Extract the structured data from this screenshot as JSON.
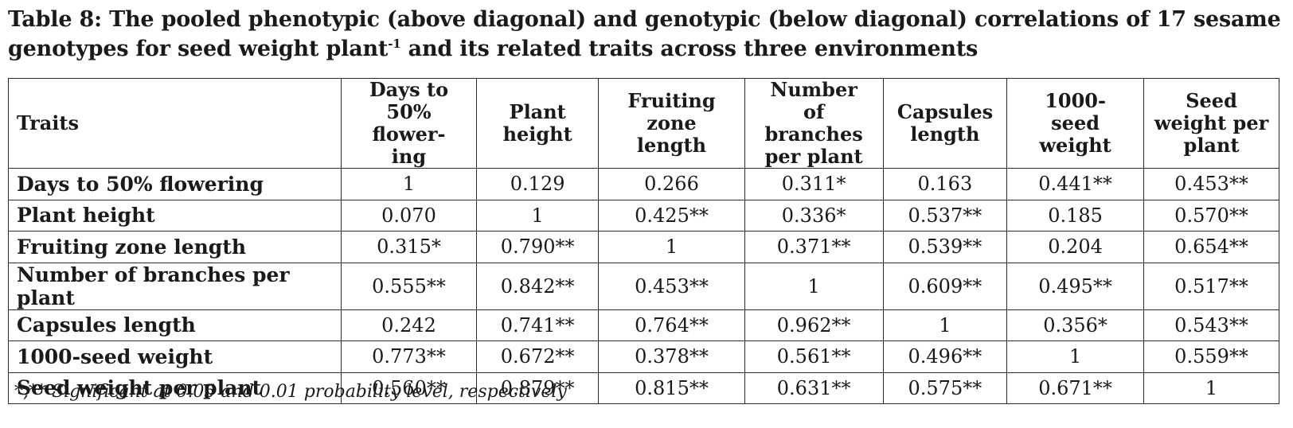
{
  "caption": {
    "text_before": "Table 8: The pooled phenotypic (above diagonal) and genotypic (below diagonal) correlations of 17 sesame genotypes for seed weight plant",
    "superscript": "-1",
    "text_after": " and its related traits across three environments"
  },
  "table": {
    "columns": [
      "Traits",
      "Days to 50% flower-ing",
      "Plant height",
      "Fruiting zone length",
      "Number of branches per plant",
      "Capsules length",
      "1000-seed weight",
      "Seed weight per plant"
    ],
    "rows": [
      {
        "trait": "Days to 50% flowering",
        "values": [
          "1",
          "0.129",
          "0.266",
          "0.311*",
          "0.163",
          "0.441**",
          "0.453**"
        ]
      },
      {
        "trait": "Plant height",
        "values": [
          "0.070",
          "1",
          "0.425**",
          "0.336*",
          "0.537**",
          "0.185",
          "0.570**"
        ]
      },
      {
        "trait": "Fruiting zone length",
        "values": [
          "0.315*",
          "0.790**",
          "1",
          "0.371**",
          "0.539**",
          "0.204",
          "0.654**"
        ]
      },
      {
        "trait": "Number of branches per plant",
        "values": [
          "0.555**",
          "0.842**",
          "0.453**",
          "1",
          "0.609**",
          "0.495**",
          "0.517**"
        ]
      },
      {
        "trait": "Capsules length",
        "values": [
          "0.242",
          "0.741**",
          "0.764**",
          "0.962**",
          "1",
          "0.356*",
          "0.543**"
        ]
      },
      {
        "trait": "1000-seed weight",
        "values": [
          "0.773**",
          "0.672**",
          "0.378**",
          "0.561**",
          "0.496**",
          "1",
          "0.559**"
        ]
      },
      {
        "trait": "Seed weight per plant",
        "values": [
          "0.560**",
          "0.879**",
          "0.815**",
          "0.631**",
          "0.575**",
          "0.671**",
          "1"
        ]
      }
    ]
  },
  "footnote": "*,** Significant at 0.05 and 0.01 probability level, respectively"
}
